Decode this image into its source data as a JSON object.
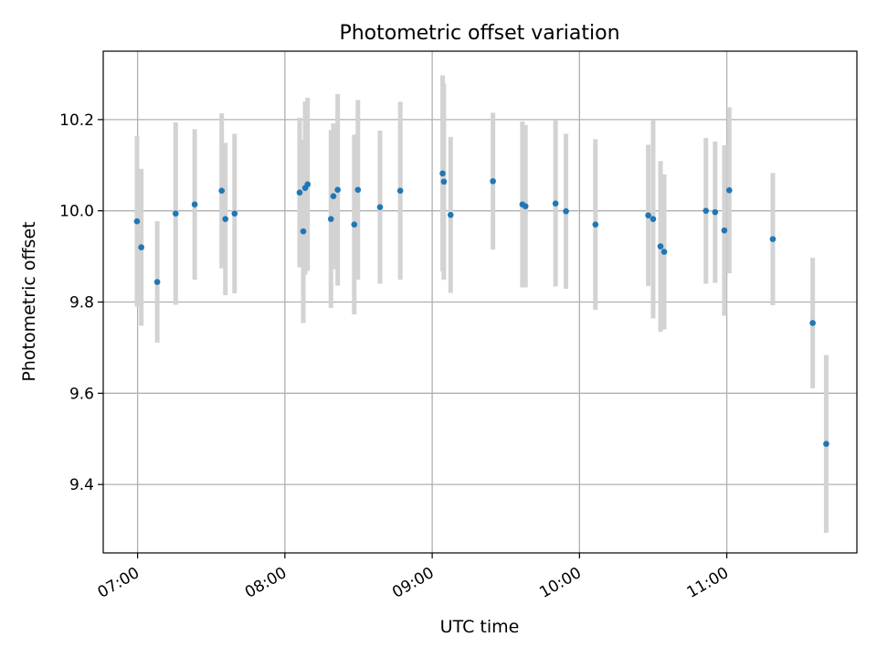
{
  "chart_data": {
    "type": "scatter",
    "title": "Photometric offset variation",
    "xlabel": "UTC time",
    "ylabel": "Photometric offset",
    "x_ticks": [
      "07:00",
      "08:00",
      "09:00",
      "10:00",
      "11:00"
    ],
    "y_ticks": [
      "9.4",
      "9.6",
      "9.8",
      "10.0",
      "10.2"
    ],
    "xlim": [
      "06:46",
      "11:53"
    ],
    "ylim": [
      9.25,
      10.35
    ],
    "grid": true,
    "colors": {
      "marker": "#1f77b4",
      "errorbar": "#d3d3d3"
    },
    "points": [
      {
        "t": "06:59:45",
        "y": 9.977,
        "err": 0.187
      },
      {
        "t": "07:01:30",
        "y": 9.92,
        "err": 0.172
      },
      {
        "t": "07:08:00",
        "y": 9.844,
        "err": 0.133
      },
      {
        "t": "07:15:30",
        "y": 9.994,
        "err": 0.2
      },
      {
        "t": "07:23:15",
        "y": 10.014,
        "err": 0.165
      },
      {
        "t": "07:34:15",
        "y": 10.044,
        "err": 0.17
      },
      {
        "t": "07:35:45",
        "y": 9.982,
        "err": 0.167
      },
      {
        "t": "07:39:30",
        "y": 9.994,
        "err": 0.175
      },
      {
        "t": "08:06:00",
        "y": 10.04,
        "err": 0.164
      },
      {
        "t": "08:07:30",
        "y": 9.955,
        "err": 0.201
      },
      {
        "t": "08:08:15",
        "y": 10.05,
        "err": 0.19
      },
      {
        "t": "08:09:15",
        "y": 10.058,
        "err": 0.19
      },
      {
        "t": "08:18:45",
        "y": 9.982,
        "err": 0.195
      },
      {
        "t": "08:19:45",
        "y": 10.032,
        "err": 0.16
      },
      {
        "t": "08:21:30",
        "y": 10.046,
        "err": 0.21
      },
      {
        "t": "08:28:15",
        "y": 9.97,
        "err": 0.197
      },
      {
        "t": "08:29:45",
        "y": 10.046,
        "err": 0.197
      },
      {
        "t": "08:38:45",
        "y": 10.008,
        "err": 0.168
      },
      {
        "t": "08:47:00",
        "y": 10.044,
        "err": 0.195
      },
      {
        "t": "09:04:15",
        "y": 10.082,
        "err": 0.215
      },
      {
        "t": "09:04:45",
        "y": 10.064,
        "err": 0.215
      },
      {
        "t": "09:07:30",
        "y": 9.991,
        "err": 0.171
      },
      {
        "t": "09:24:45",
        "y": 10.065,
        "err": 0.15
      },
      {
        "t": "09:36:45",
        "y": 10.014,
        "err": 0.182
      },
      {
        "t": "09:38:00",
        "y": 10.01,
        "err": 0.178
      },
      {
        "t": "09:50:15",
        "y": 10.016,
        "err": 0.182
      },
      {
        "t": "09:54:30",
        "y": 9.999,
        "err": 0.17
      },
      {
        "t": "10:06:30",
        "y": 9.97,
        "err": 0.187
      },
      {
        "t": "10:28:00",
        "y": 9.99,
        "err": 0.155
      },
      {
        "t": "10:30:00",
        "y": 9.982,
        "err": 0.218
      },
      {
        "t": "10:33:00",
        "y": 9.922,
        "err": 0.187
      },
      {
        "t": "10:34:30",
        "y": 9.91,
        "err": 0.17
      },
      {
        "t": "10:51:30",
        "y": 10.0,
        "err": 0.16
      },
      {
        "t": "10:55:15",
        "y": 9.997,
        "err": 0.155
      },
      {
        "t": "10:59:00",
        "y": 9.957,
        "err": 0.187
      },
      {
        "t": "11:01:00",
        "y": 10.045,
        "err": 0.182
      },
      {
        "t": "11:18:45",
        "y": 9.938,
        "err": 0.145
      },
      {
        "t": "11:35:00",
        "y": 9.754,
        "err": 0.143
      },
      {
        "t": "11:40:30",
        "y": 9.489,
        "err": 0.195
      }
    ]
  }
}
